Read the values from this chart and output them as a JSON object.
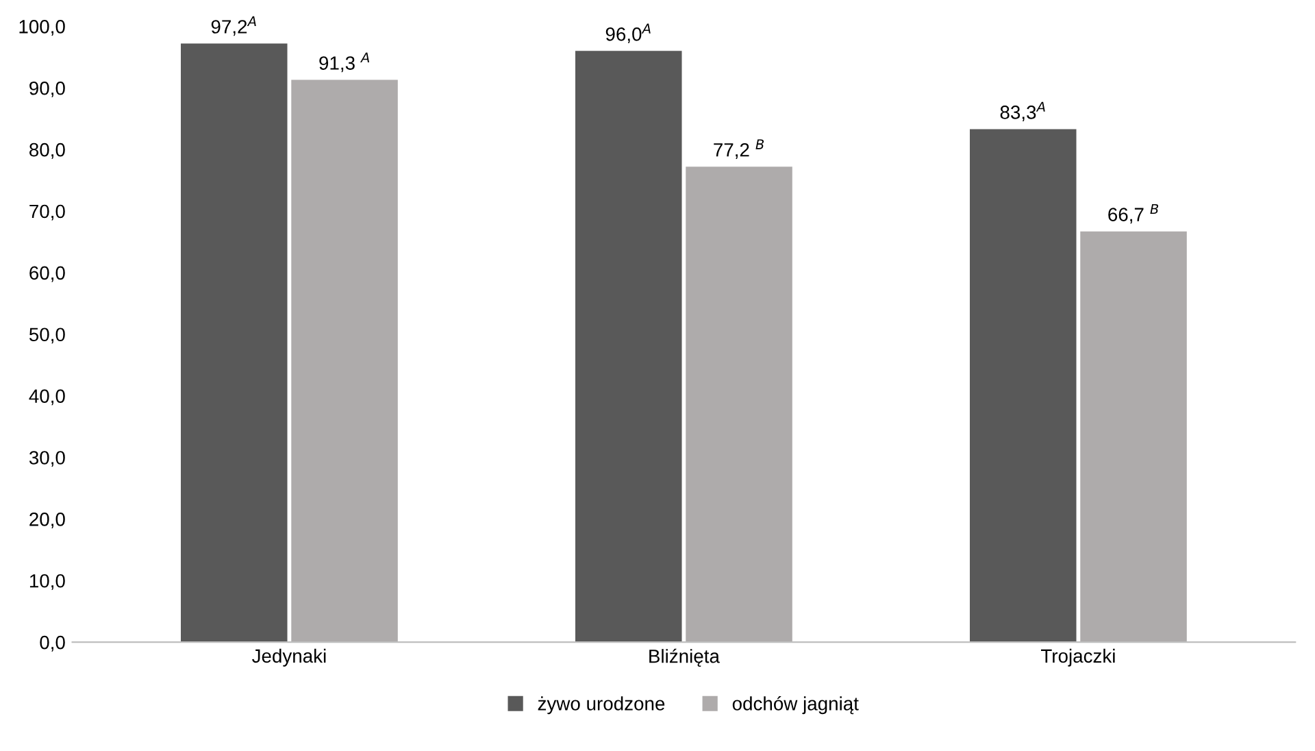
{
  "chart_data": {
    "type": "bar",
    "categories": [
      "Jedynaki",
      "Bliźnięta",
      "Trojaczki"
    ],
    "series": [
      {
        "name": "żywo urodzone",
        "color": "#595959",
        "values": [
          97.2,
          96.0,
          83.3
        ],
        "value_labels": [
          "97,2$^{A}$",
          "96,0$^{A}$",
          "83,3$^{A}$"
        ]
      },
      {
        "name": "odchów jagniąt",
        "color": "#aeabab",
        "values": [
          91.3,
          77.2,
          66.7
        ],
        "value_labels": [
          "91,3 $^{A}$",
          "77,2 $^{B}$",
          "66,7 $^{B}$"
        ]
      }
    ],
    "ylim": [
      0,
      100
    ],
    "yticks": [
      {
        "value": 0,
        "label": "0,0"
      },
      {
        "value": 10,
        "label": "10,0"
      },
      {
        "value": 20,
        "label": "20,0"
      },
      {
        "value": 30,
        "label": "30,0"
      },
      {
        "value": 40,
        "label": "40,0"
      },
      {
        "value": 50,
        "label": "50,0"
      },
      {
        "value": 60,
        "label": "60,0"
      },
      {
        "value": 70,
        "label": "70,0"
      },
      {
        "value": 80,
        "label": "80,0"
      },
      {
        "value": 90,
        "label": "90,0"
      },
      {
        "value": 100,
        "label": "100,0"
      }
    ],
    "grid": false,
    "legend": "bottom"
  }
}
